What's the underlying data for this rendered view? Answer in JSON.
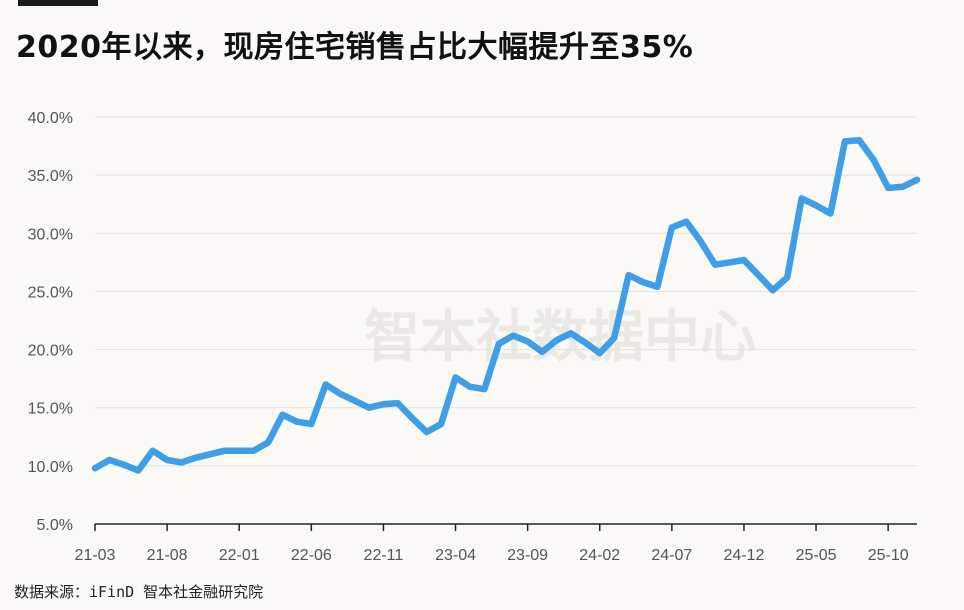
{
  "title": "2020年以来，现房住宅销售占比大幅提升至35%",
  "source": "数据来源：iFinD 智本社金融研究院",
  "watermark": "智本社数据中心",
  "colors": {
    "line": "#3f9ee8",
    "grid": "#e2e1dc",
    "axis": "#222222",
    "background": "#faf9f5"
  },
  "chart_data": {
    "type": "line",
    "title": "2020年以来，现房住宅销售占比大幅提升至35%",
    "xlabel": "",
    "ylabel": "",
    "ylim": [
      5,
      40
    ],
    "yticks": [
      5,
      10,
      15,
      20,
      25,
      30,
      35,
      40
    ],
    "ytick_labels": [
      "5.0%",
      "10.0%",
      "15.0%",
      "20.0%",
      "25.0%",
      "30.0%",
      "35.0%",
      "40.0%"
    ],
    "xtick_labels": [
      "21-03",
      "21-08",
      "22-01",
      "22-06",
      "22-11",
      "23-04",
      "23-09",
      "24-02",
      "24-07",
      "24-12",
      "25-05",
      "25-10"
    ],
    "grid": true,
    "legend": "none",
    "x": [
      "21-03",
      "21-04",
      "21-05",
      "21-06",
      "21-07",
      "21-08",
      "21-09",
      "21-10",
      "21-11",
      "21-12",
      "22-01",
      "22-02",
      "22-03",
      "22-04",
      "22-05",
      "22-06",
      "22-07",
      "22-08",
      "22-09",
      "22-10",
      "22-11",
      "22-12",
      "23-01",
      "23-02",
      "23-03",
      "23-04",
      "23-05",
      "23-06",
      "23-07",
      "23-08",
      "23-09",
      "23-10",
      "23-11",
      "23-12",
      "24-01",
      "24-02",
      "24-03",
      "24-04",
      "24-05",
      "24-06",
      "24-07",
      "24-08",
      "24-09",
      "24-10",
      "24-11",
      "24-12",
      "25-01",
      "25-02",
      "25-03",
      "25-04",
      "25-05",
      "25-06",
      "25-07",
      "25-08",
      "25-09",
      "25-10",
      "25-11",
      "25-12"
    ],
    "series": [
      {
        "values": [
          9.8,
          10.5,
          10.1,
          9.6,
          11.3,
          10.5,
          10.3,
          10.7,
          11.0,
          11.3,
          11.3,
          11.3,
          12.0,
          14.4,
          13.8,
          13.6,
          17.0,
          16.2,
          15.6,
          15.0,
          15.3,
          15.4,
          14.1,
          12.9,
          13.6,
          17.6,
          16.8,
          16.6,
          20.5,
          21.2,
          20.7,
          19.8,
          20.8,
          21.4,
          20.6,
          19.7,
          21.0,
          26.4,
          25.8,
          25.4,
          30.5,
          31.0,
          29.3,
          27.3,
          27.5,
          27.7,
          26.4,
          25.1,
          26.2,
          33.0,
          32.4,
          31.7,
          37.9,
          38.0,
          36.3,
          33.9,
          34.0,
          34.6
        ]
      }
    ]
  }
}
